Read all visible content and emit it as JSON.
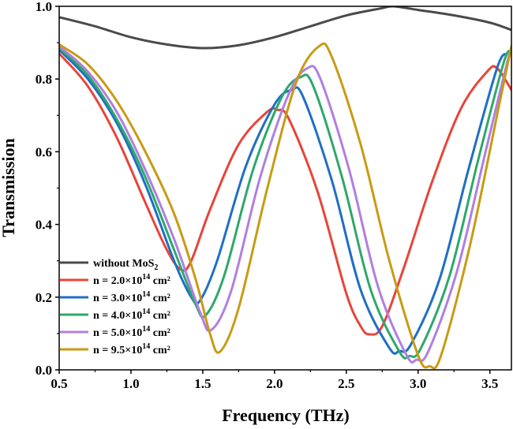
{
  "chart_data": {
    "type": "line",
    "xlabel": "Frequency (THz)",
    "ylabel": "Transmission",
    "xlim": [
      0.5,
      3.65
    ],
    "ylim": [
      0.0,
      1.0
    ],
    "xticks": [
      "0.5",
      "1.0",
      "1.5",
      "2.0",
      "2.5",
      "3.0",
      "3.5"
    ],
    "yticks": [
      "0.0",
      "0.2",
      "0.4",
      "0.6",
      "0.8",
      "1.0"
    ],
    "grid": false,
    "legend_position": "bottom-left",
    "series": [
      {
        "name": "without MoS2",
        "legend": {
          "pre": "without MoS",
          "sub": "2",
          "mid": "",
          "sup": "",
          "post": ""
        },
        "color": "#4a4a4a",
        "x": [
          0.5,
          0.75,
          1.0,
          1.25,
          1.5,
          1.75,
          2.0,
          2.25,
          2.5,
          2.75,
          2.83,
          3.0,
          3.25,
          3.5,
          3.65
        ],
        "y": [
          0.97,
          0.945,
          0.915,
          0.895,
          0.885,
          0.893,
          0.915,
          0.945,
          0.975,
          0.995,
          1.0,
          0.99,
          0.975,
          0.955,
          0.935
        ]
      },
      {
        "name": "n = 2.0×10^14 cm^2",
        "legend": {
          "pre": "n = 2.0×10",
          "sub": "",
          "mid": "",
          "sup": "14",
          "post": " cm²"
        },
        "color": "#e8443a",
        "x": [
          0.5,
          0.7,
          0.9,
          1.1,
          1.25,
          1.35,
          1.42,
          1.55,
          1.75,
          1.95,
          2.02,
          2.1,
          2.3,
          2.5,
          2.6,
          2.66,
          2.75,
          2.9,
          3.1,
          3.3,
          3.48,
          3.55,
          3.65
        ],
        "y": [
          0.87,
          0.78,
          0.64,
          0.46,
          0.33,
          0.275,
          0.3,
          0.44,
          0.62,
          0.71,
          0.715,
          0.69,
          0.49,
          0.21,
          0.12,
          0.098,
          0.12,
          0.28,
          0.52,
          0.72,
          0.82,
          0.83,
          0.77
        ]
      },
      {
        "name": "n = 3.0×10^14 cm^2",
        "legend": {
          "pre": "n = 3.0×10",
          "sub": "",
          "mid": "",
          "sup": "14",
          "post": " cm²"
        },
        "color": "#1f6fc5",
        "x": [
          0.5,
          0.7,
          0.9,
          1.1,
          1.3,
          1.42,
          1.48,
          1.6,
          1.8,
          2.0,
          2.12,
          2.2,
          2.4,
          2.6,
          2.8,
          2.87,
          2.95,
          3.15,
          3.35,
          3.55,
          3.62
        ],
        "y": [
          0.88,
          0.8,
          0.68,
          0.51,
          0.3,
          0.2,
          0.19,
          0.3,
          0.56,
          0.73,
          0.77,
          0.75,
          0.52,
          0.22,
          0.06,
          0.052,
          0.07,
          0.25,
          0.55,
          0.83,
          0.87
        ]
      },
      {
        "name": "n = 4.0×10^14 cm^2",
        "legend": {
          "pre": "n = 4.0×10",
          "sub": "",
          "mid": "",
          "sup": "14",
          "post": " cm²"
        },
        "color": "#2ea86a",
        "x": [
          0.5,
          0.7,
          0.9,
          1.1,
          1.3,
          1.45,
          1.52,
          1.65,
          1.85,
          2.05,
          2.18,
          2.27,
          2.47,
          2.67,
          2.87,
          2.94,
          3.02,
          3.22,
          3.42,
          3.6,
          3.65
        ],
        "y": [
          0.885,
          0.81,
          0.69,
          0.53,
          0.33,
          0.18,
          0.15,
          0.26,
          0.55,
          0.75,
          0.805,
          0.78,
          0.53,
          0.22,
          0.05,
          0.038,
          0.06,
          0.26,
          0.58,
          0.85,
          0.87
        ]
      },
      {
        "name": "n = 5.0×10^14 cm^2",
        "legend": {
          "pre": "n = 5.0×10",
          "sub": "",
          "mid": "",
          "sup": "14",
          "post": " cm²"
        },
        "color": "#b07fe0",
        "x": [
          0.5,
          0.7,
          0.9,
          1.1,
          1.3,
          1.48,
          1.56,
          1.7,
          1.9,
          2.1,
          2.23,
          2.32,
          2.52,
          2.72,
          2.92,
          2.99,
          3.07,
          3.27,
          3.47,
          3.63,
          3.65
        ],
        "y": [
          0.89,
          0.82,
          0.71,
          0.55,
          0.36,
          0.16,
          0.11,
          0.22,
          0.53,
          0.76,
          0.83,
          0.8,
          0.55,
          0.23,
          0.04,
          0.028,
          0.05,
          0.27,
          0.6,
          0.86,
          0.87
        ]
      },
      {
        "name": "n = 9.5×10^14 cm^2",
        "legend": {
          "pre": "n = 9.5×10",
          "sub": "",
          "mid": "",
          "sup": "14",
          "post": " cm²"
        },
        "color": "#c89b14",
        "x": [
          0.5,
          0.7,
          0.9,
          1.1,
          1.3,
          1.45,
          1.55,
          1.62,
          1.75,
          1.95,
          2.15,
          2.31,
          2.4,
          2.6,
          2.8,
          3.0,
          3.08,
          3.16,
          3.36,
          3.56,
          3.65
        ],
        "y": [
          0.895,
          0.84,
          0.74,
          0.6,
          0.43,
          0.25,
          0.1,
          0.05,
          0.17,
          0.5,
          0.79,
          0.89,
          0.86,
          0.62,
          0.3,
          0.04,
          0.01,
          0.04,
          0.34,
          0.72,
          0.89
        ]
      }
    ]
  }
}
